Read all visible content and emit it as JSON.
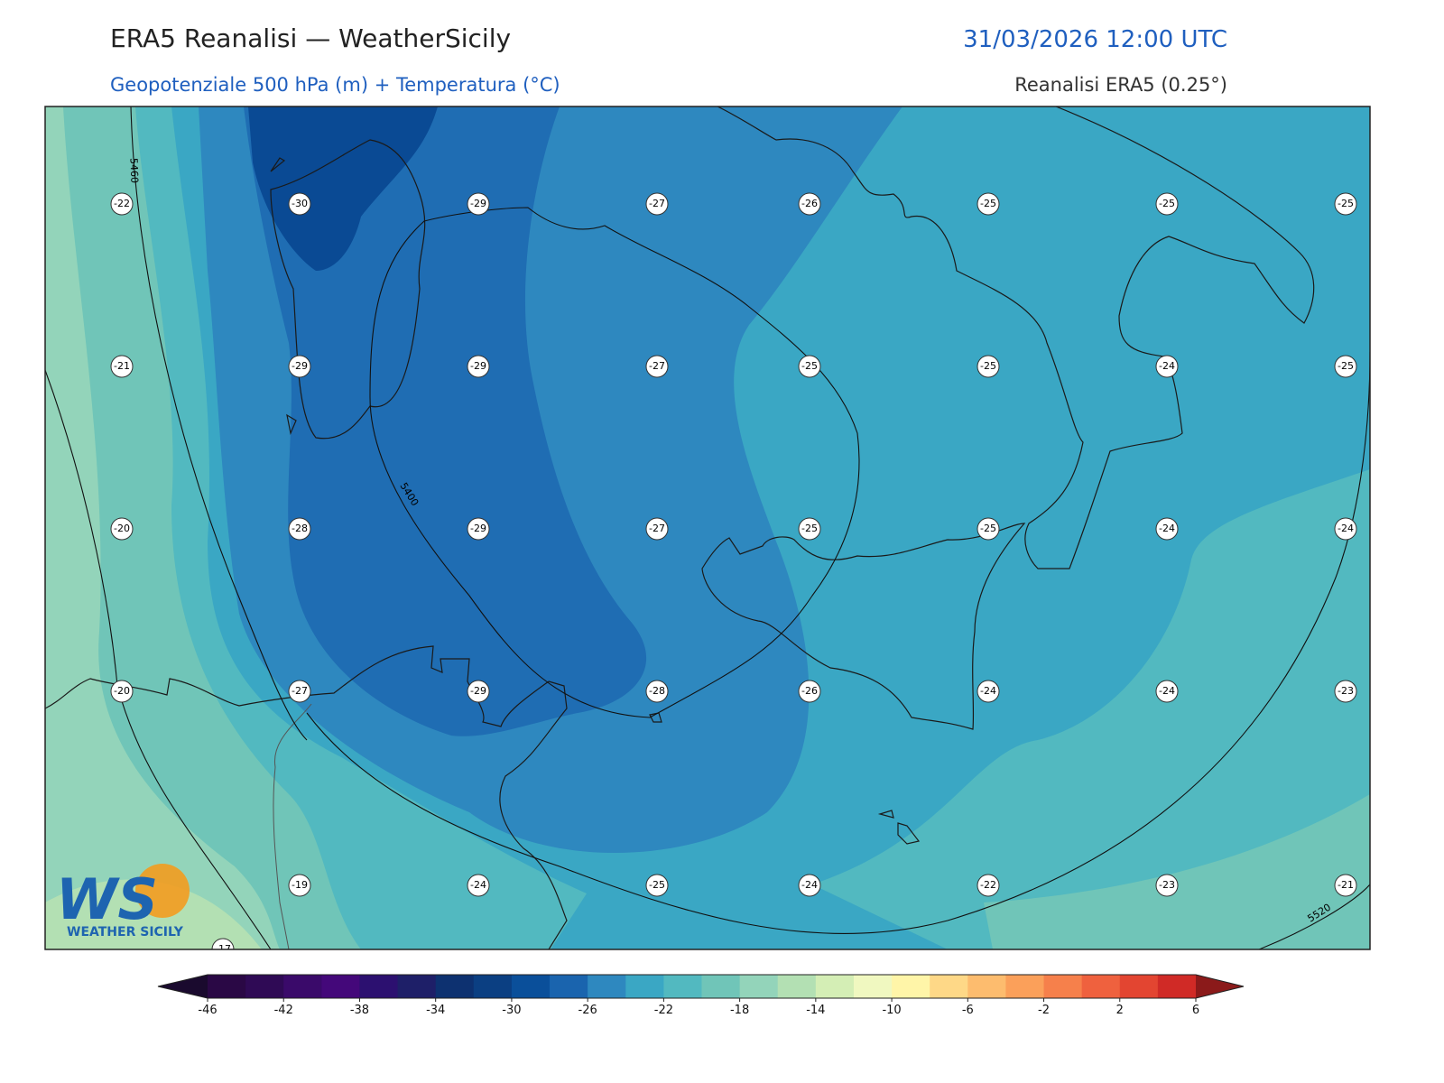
{
  "header": {
    "title": "ERA5 Reanalisi — WeatherSicily",
    "datetime": "31/03/2026 12:00 UTC",
    "subtitle": "Geopotenziale 500 hPa (m) + Temperatura (°C)",
    "source": "Reanalisi ERA5 (0.25°)"
  },
  "map": {
    "temperature_labels": [
      [
        -22,
        -30,
        -29,
        -27,
        -26,
        -25,
        -25,
        -25
      ],
      [
        -21,
        -29,
        -29,
        -27,
        -25,
        -25,
        -24,
        -25
      ],
      [
        -20,
        -28,
        -29,
        -27,
        -25,
        -25,
        -24,
        -24
      ],
      [
        -20,
        -27,
        -29,
        -28,
        -26,
        -24,
        -24,
        -23
      ],
      [
        null,
        -19,
        -24,
        -25,
        -24,
        -22,
        -23,
        -21
      ],
      [
        -17
      ]
    ],
    "contour_labels": [
      5460,
      5400,
      5520
    ]
  },
  "logo": {
    "mark": "WS",
    "name": "WEATHER SICILY"
  },
  "colorbar": {
    "ticks": [
      -46,
      -42,
      -38,
      -34,
      -30,
      -26,
      -22,
      -18,
      -14,
      -10,
      -6,
      -2,
      2,
      6
    ],
    "lim": [
      -46,
      6
    ],
    "colors": [
      "#2a0845",
      "#2f0a55",
      "#3a0a6a",
      "#44087a",
      "#2c1070",
      "#1e1f68",
      "#0d3170",
      "#0b3f82",
      "#0a4f9a",
      "#1a64ae",
      "#2e88bf",
      "#3aa7c4",
      "#52b9c0",
      "#70c5b8",
      "#93d4ba",
      "#b3e0b3",
      "#d4eeb5",
      "#f0f8c0",
      "#fff5a8",
      "#fed887",
      "#fdbc6e",
      "#fba05a",
      "#f6804b",
      "#ef613e",
      "#e34531",
      "#d02a26"
    ],
    "under_color": "#1a0a2e",
    "over_color": "#8b1a1a"
  }
}
